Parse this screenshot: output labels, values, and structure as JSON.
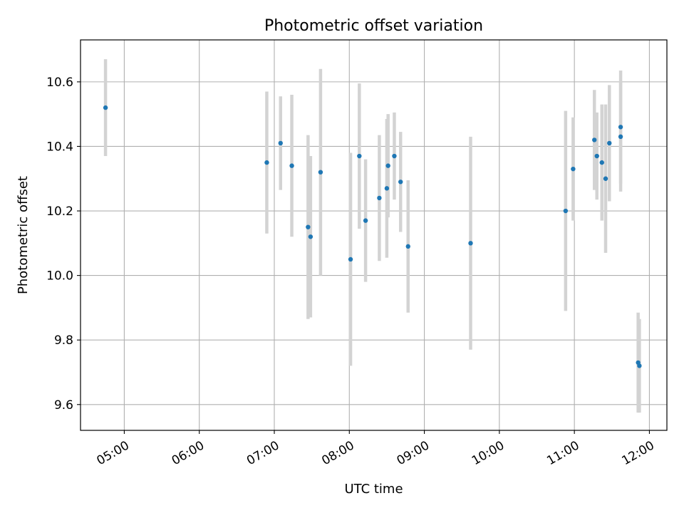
{
  "chart_data": {
    "type": "scatter",
    "title": "Photometric offset variation",
    "xlabel": "UTC time",
    "ylabel": "Photometric offset",
    "grid": true,
    "legend": "none",
    "x_tick_labels": [
      "05:00",
      "06:00",
      "07:00",
      "08:00",
      "09:00",
      "10:00",
      "11:00",
      "12:00"
    ],
    "x_ticks": [
      "05:00",
      "06:00",
      "07:00",
      "08:00",
      "09:00",
      "10:00",
      "11:00",
      "12:00"
    ],
    "xlim": [
      "04:25",
      "12:14"
    ],
    "y_ticks": [
      9.6,
      9.8,
      10.0,
      10.2,
      10.4,
      10.6
    ],
    "y_tick_labels": [
      "9.6",
      "9.8",
      "10.0",
      "10.2",
      "10.4",
      "10.6"
    ],
    "ylim": [
      9.52,
      10.73
    ],
    "colors": {
      "point": "#1f77b4",
      "errorbar": "#d3d3d3",
      "grid": "#b0b0b0"
    },
    "points": [
      {
        "x": "04:45",
        "y": 10.52,
        "err": 0.15
      },
      {
        "x": "06:54",
        "y": 10.35,
        "err": 0.22
      },
      {
        "x": "07:05",
        "y": 10.41,
        "err": 0.145
      },
      {
        "x": "07:14",
        "y": 10.34,
        "err": 0.22
      },
      {
        "x": "07:27",
        "y": 10.15,
        "err": 0.285
      },
      {
        "x": "07:29",
        "y": 10.12,
        "err": 0.25
      },
      {
        "x": "07:37",
        "y": 10.32,
        "err": 0.32
      },
      {
        "x": "08:01",
        "y": 10.05,
        "err": 0.33
      },
      {
        "x": "08:08",
        "y": 10.37,
        "err": 0.225
      },
      {
        "x": "08:13",
        "y": 10.17,
        "err": 0.19
      },
      {
        "x": "08:24",
        "y": 10.24,
        "err": 0.195
      },
      {
        "x": "08:30",
        "y": 10.27,
        "err": 0.215
      },
      {
        "x": "08:31",
        "y": 10.34,
        "err": 0.16
      },
      {
        "x": "08:36",
        "y": 10.37,
        "err": 0.135
      },
      {
        "x": "08:41",
        "y": 10.29,
        "err": 0.155
      },
      {
        "x": "08:47",
        "y": 10.09,
        "err": 0.205
      },
      {
        "x": "09:37",
        "y": 10.1,
        "err": 0.33
      },
      {
        "x": "10:53",
        "y": 10.2,
        "err": 0.31
      },
      {
        "x": "10:59",
        "y": 10.33,
        "err": 0.16
      },
      {
        "x": "11:16",
        "y": 10.42,
        "err": 0.155
      },
      {
        "x": "11:18",
        "y": 10.37,
        "err": 0.135
      },
      {
        "x": "11:22",
        "y": 10.35,
        "err": 0.18
      },
      {
        "x": "11:25",
        "y": 10.3,
        "err": 0.23
      },
      {
        "x": "11:28",
        "y": 10.41,
        "err": 0.18
      },
      {
        "x": "11:37",
        "y": 10.46,
        "err": 0.175
      },
      {
        "x": "11:37",
        "y": 10.43,
        "err": 0.17
      },
      {
        "x": "11:51",
        "y": 9.73,
        "err": 0.155
      },
      {
        "x": "11:52",
        "y": 9.72,
        "err": 0.145
      }
    ]
  }
}
